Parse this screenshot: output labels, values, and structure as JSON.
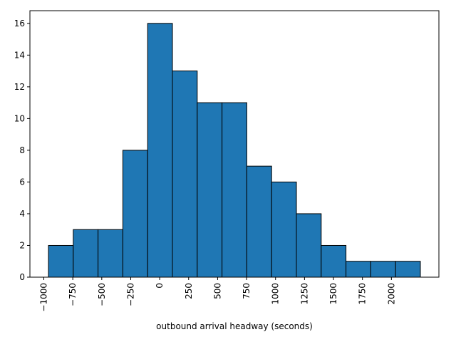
{
  "chart_data": {
    "type": "bar",
    "subtype": "histogram",
    "xlabel": "outbound arrival headway (seconds)",
    "ylabel": "",
    "title": "",
    "bin_edges": [
      -960,
      -746,
      -532,
      -318,
      -104,
      110,
      324,
      538,
      752,
      966,
      1180,
      1394,
      1608,
      1822,
      2036,
      2250
    ],
    "values": [
      2,
      3,
      3,
      8,
      16,
      13,
      11,
      11,
      7,
      6,
      4,
      2,
      1,
      1,
      1
    ],
    "xlim": [
      -1120,
      2410
    ],
    "ylim": [
      0,
      16.8
    ],
    "x_ticks": [
      -1000,
      -750,
      -500,
      -250,
      0,
      250,
      500,
      750,
      1000,
      1250,
      1500,
      1750,
      2000
    ],
    "x_tick_labels": [
      "−1000",
      "−750",
      "−500",
      "−250",
      "0",
      "250",
      "500",
      "750",
      "1000",
      "1250",
      "1500",
      "1750",
      "2000"
    ],
    "x_tick_rotation": 90,
    "y_ticks": [
      0,
      2,
      4,
      6,
      8,
      10,
      12,
      14,
      16
    ],
    "y_tick_labels": [
      "0",
      "2",
      "4",
      "6",
      "8",
      "10",
      "12",
      "14",
      "16"
    ],
    "bar_color": "#1f77b4",
    "edge_color": "#000000",
    "grid": false,
    "legend": "none"
  }
}
